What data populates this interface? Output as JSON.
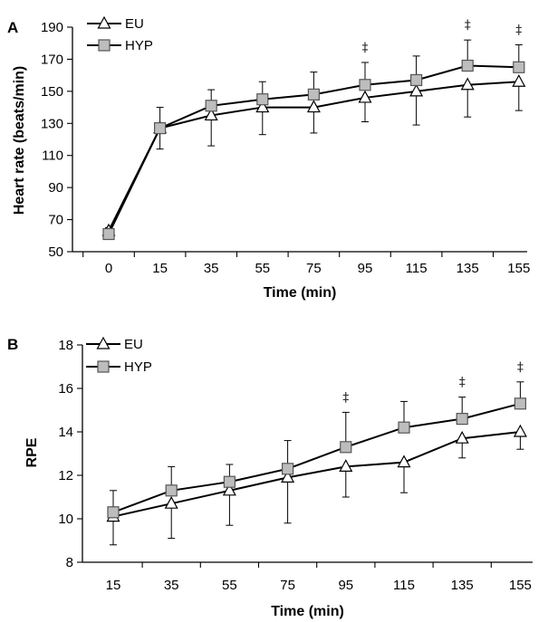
{
  "chart_data": [
    {
      "type": "line",
      "panel_label": "A",
      "xlabel": "Time (min)",
      "ylabel": "Heart rate (beats/min)",
      "x": [
        0,
        15,
        35,
        55,
        75,
        95,
        115,
        135,
        155
      ],
      "x_tick_labels": [
        "0",
        "15",
        "35",
        "55",
        "75",
        "95",
        "115",
        "135",
        "155"
      ],
      "y_ticks": [
        50,
        70,
        90,
        110,
        130,
        150,
        170,
        190
      ],
      "ylim": [
        50,
        190
      ],
      "legend_position": "top-left",
      "series": [
        {
          "name": "EU",
          "marker": "triangle",
          "values": [
            63,
            127,
            135,
            140,
            140,
            146,
            150,
            154,
            156
          ],
          "error": [
            5,
            13,
            19,
            17,
            16,
            15,
            21,
            20,
            18
          ]
        },
        {
          "name": "HYP",
          "marker": "square",
          "values": [
            61,
            127,
            141,
            145,
            148,
            154,
            157,
            166,
            165
          ],
          "error": [
            4,
            13,
            10,
            11,
            14,
            14,
            15,
            16,
            14
          ]
        }
      ],
      "significance": [
        {
          "x": 95,
          "symbol": "‡"
        },
        {
          "x": 135,
          "symbol": "‡"
        },
        {
          "x": 155,
          "symbol": "‡"
        }
      ],
      "colors": {
        "triangle_fill": "#ffffff",
        "square_fill": "#bdbdbd",
        "line": "#000000"
      }
    },
    {
      "type": "line",
      "panel_label": "B",
      "xlabel": "Time (min)",
      "ylabel": "RPE",
      "x": [
        15,
        35,
        55,
        75,
        95,
        115,
        135,
        155
      ],
      "x_tick_labels": [
        "15",
        "35",
        "55",
        "75",
        "95",
        "115",
        "135",
        "155"
      ],
      "y_ticks": [
        8,
        10,
        12,
        14,
        16,
        18
      ],
      "ylim": [
        8,
        18
      ],
      "legend_position": "top-left",
      "series": [
        {
          "name": "EU",
          "marker": "triangle",
          "values": [
            10.1,
            10.7,
            11.3,
            11.9,
            12.4,
            12.6,
            13.7,
            14.0
          ],
          "error": [
            1.3,
            1.6,
            1.6,
            2.1,
            1.4,
            1.4,
            0.9,
            0.8
          ]
        },
        {
          "name": "HYP",
          "marker": "square",
          "values": [
            10.3,
            11.3,
            11.7,
            12.3,
            13.3,
            14.2,
            14.6,
            15.3
          ],
          "error": [
            1.0,
            1.1,
            0.8,
            1.3,
            1.6,
            1.2,
            1.0,
            1.0
          ]
        }
      ],
      "significance": [
        {
          "x": 95,
          "symbol": "‡"
        },
        {
          "x": 135,
          "symbol": "‡"
        },
        {
          "x": 155,
          "symbol": "‡"
        }
      ],
      "colors": {
        "triangle_fill": "#ffffff",
        "square_fill": "#bdbdbd",
        "line": "#000000"
      }
    }
  ]
}
